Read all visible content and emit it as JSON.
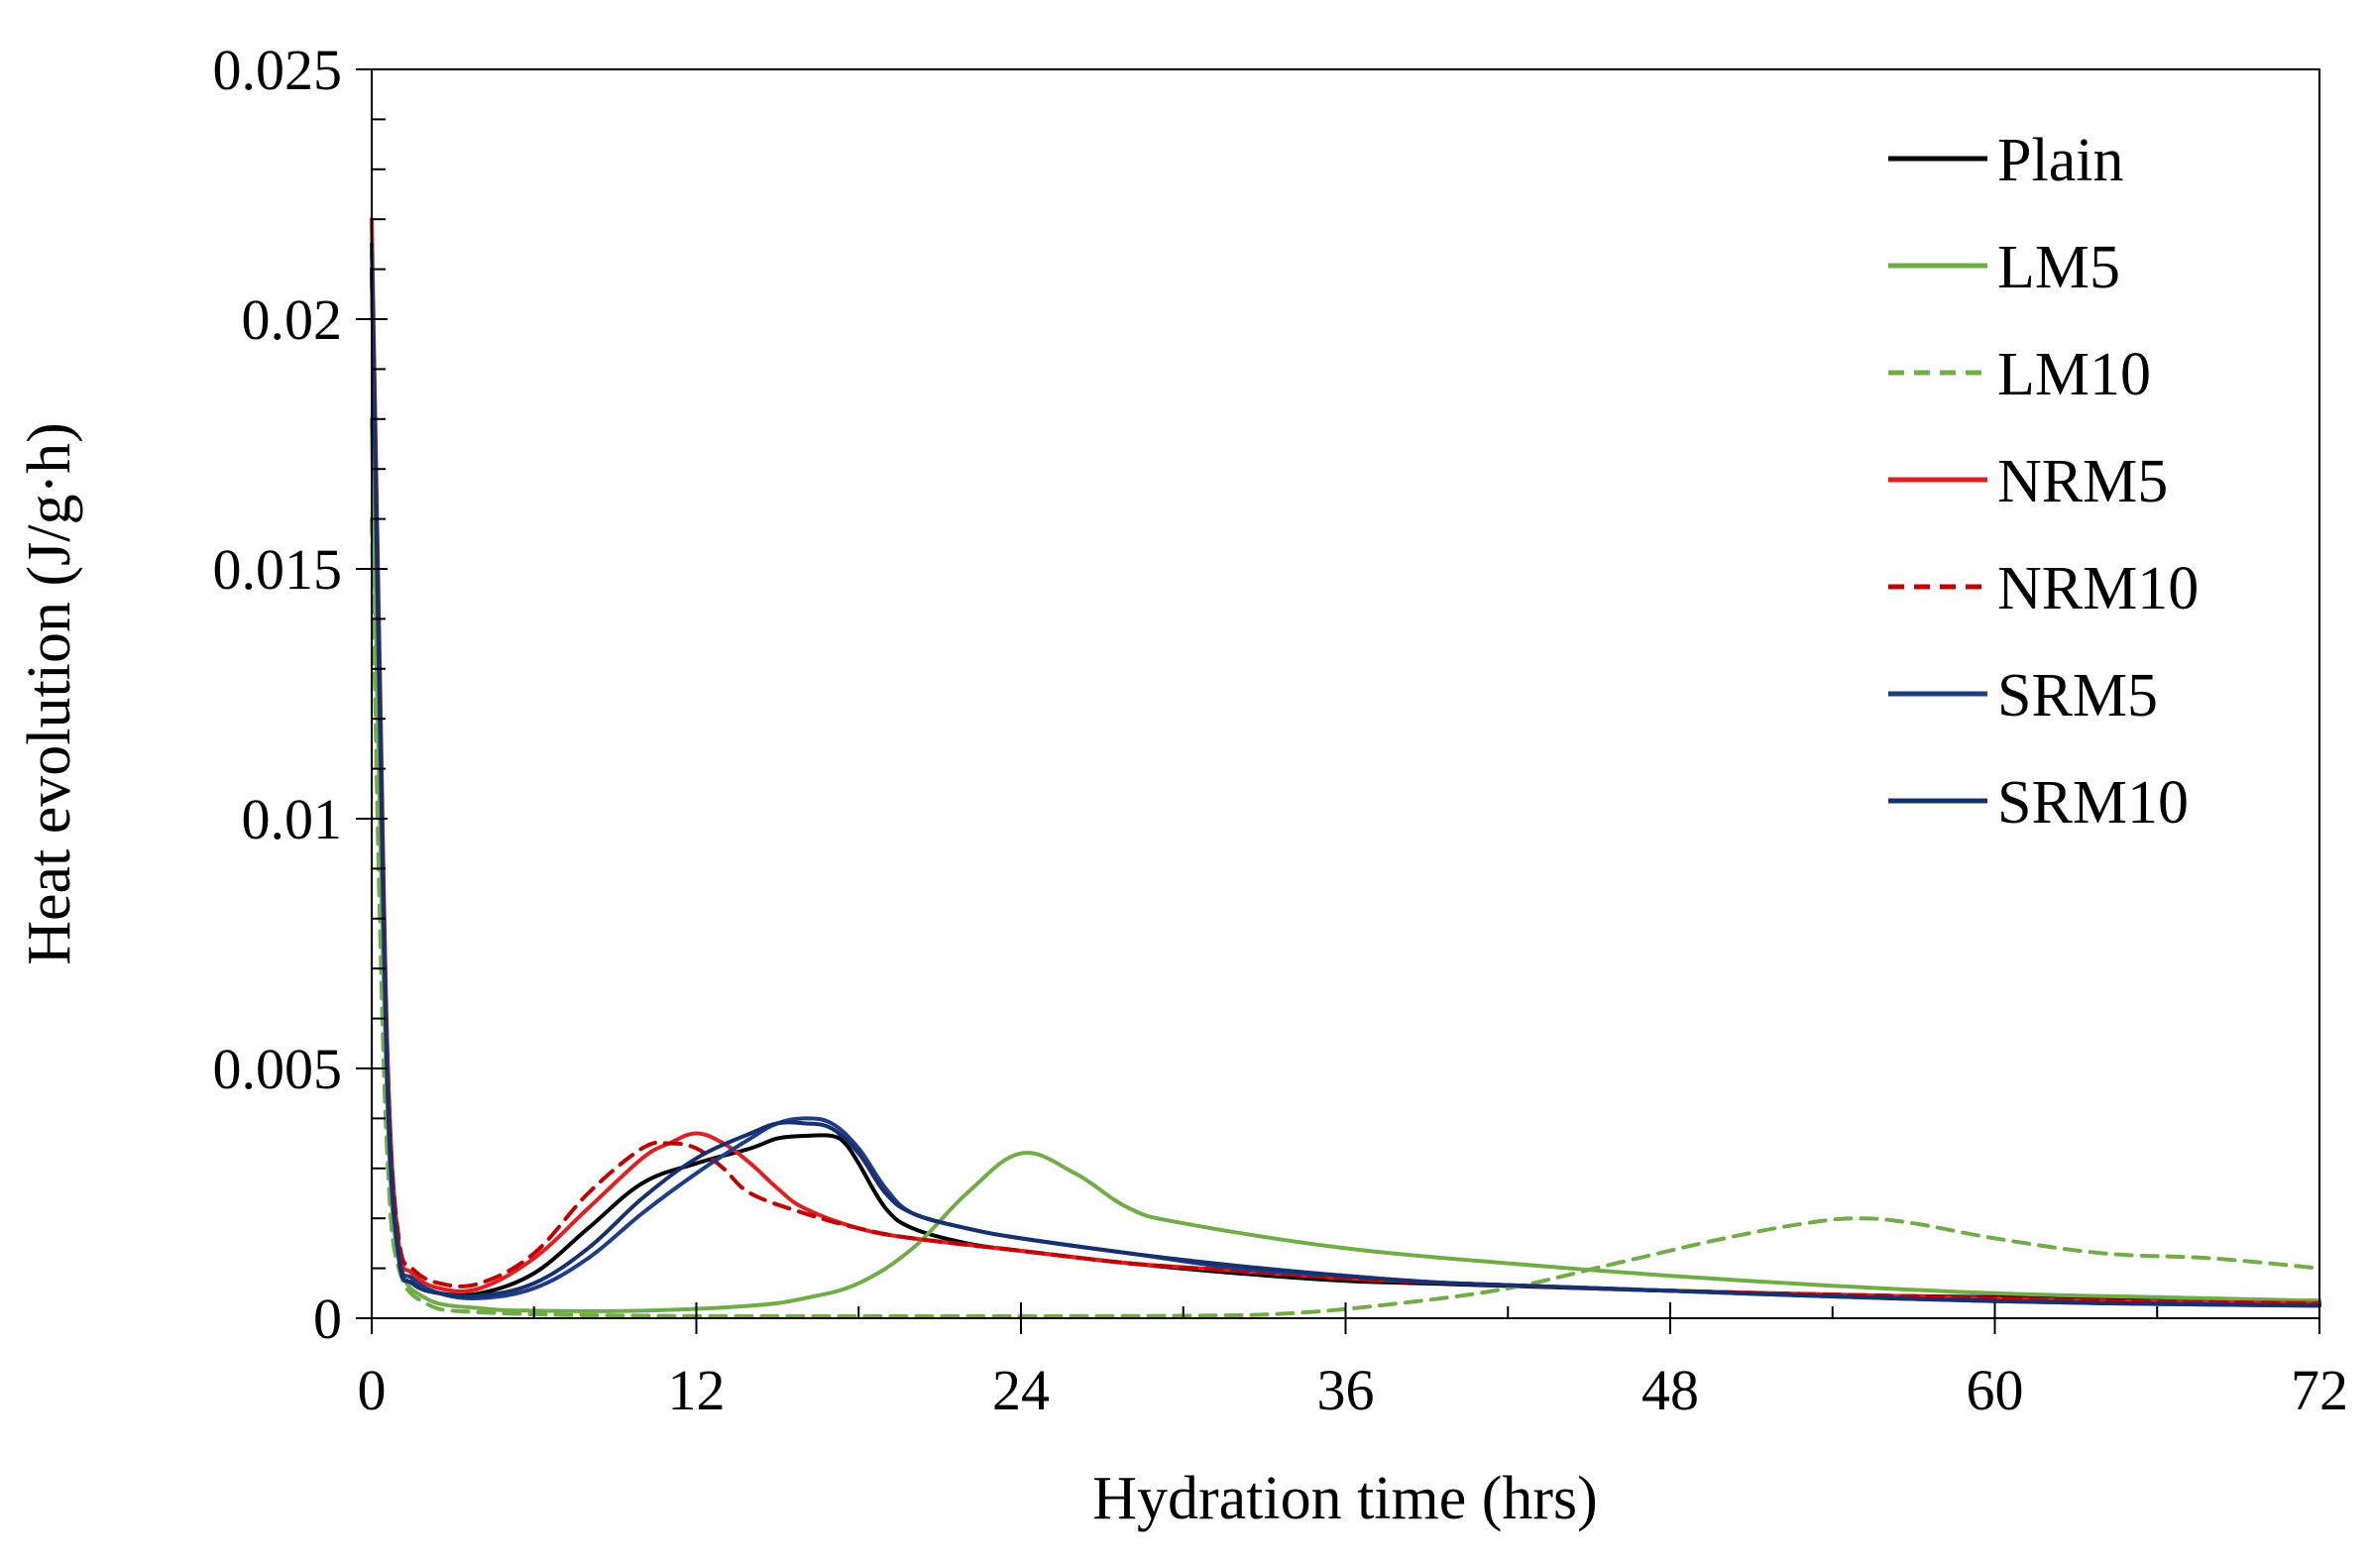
{
  "chart_data": {
    "type": "line",
    "title": "",
    "xlabel": "Hydration time (hrs)",
    "ylabel": "Heat evolution (J/g·h)",
    "xlim": [
      0,
      72
    ],
    "ylim": [
      0,
      0.025
    ],
    "xticks": [
      0,
      12,
      24,
      36,
      48,
      60,
      72
    ],
    "xtick_labels": [
      "0",
      "12",
      "24",
      "36",
      "48",
      "60",
      "72"
    ],
    "yticks": [
      0,
      0.005,
      0.01,
      0.015,
      0.02,
      0.025
    ],
    "ytick_labels": [
      "0",
      "0.005",
      "0.01",
      "0.015",
      "0.02",
      "0.025"
    ],
    "grid": false,
    "legend_position": "top-right",
    "series": [
      {
        "name": "Plain",
        "color": "#000000",
        "dash": "solid",
        "points": [
          [
            0,
            0.021
          ],
          [
            0.3,
            0.012
          ],
          [
            0.6,
            0.004
          ],
          [
            1,
            0.0012
          ],
          [
            1.5,
            0.0007
          ],
          [
            2.5,
            0.0005
          ],
          [
            4,
            0.0005
          ],
          [
            6,
            0.0009
          ],
          [
            8,
            0.0018
          ],
          [
            10,
            0.0027
          ],
          [
            12,
            0.0031
          ],
          [
            14,
            0.0034
          ],
          [
            15,
            0.0036
          ],
          [
            16,
            0.00365
          ],
          [
            17,
            0.00365
          ],
          [
            17.5,
            0.0035
          ],
          [
            18,
            0.0031
          ],
          [
            19,
            0.0022
          ],
          [
            20,
            0.0018
          ],
          [
            22,
            0.0015
          ],
          [
            24,
            0.00135
          ],
          [
            28,
            0.0011
          ],
          [
            32,
            0.0009
          ],
          [
            36,
            0.00075
          ],
          [
            40,
            0.00068
          ],
          [
            48,
            0.00055
          ],
          [
            56,
            0.00045
          ],
          [
            64,
            0.0004
          ],
          [
            72,
            0.00035
          ]
        ]
      },
      {
        "name": "LM5",
        "color": "#70ad47",
        "dash": "solid",
        "points": [
          [
            0,
            0.018
          ],
          [
            0.3,
            0.01
          ],
          [
            0.6,
            0.004
          ],
          [
            1,
            0.0012
          ],
          [
            2,
            0.0004
          ],
          [
            4,
            0.0002
          ],
          [
            6,
            0.00015
          ],
          [
            10,
            0.00015
          ],
          [
            14,
            0.00025
          ],
          [
            16,
            0.0004
          ],
          [
            18,
            0.0007
          ],
          [
            20,
            0.0014
          ],
          [
            22,
            0.0025
          ],
          [
            24,
            0.0033
          ],
          [
            26,
            0.0029
          ],
          [
            28,
            0.0022
          ],
          [
            30,
            0.0019
          ],
          [
            36,
            0.0014
          ],
          [
            42,
            0.0011
          ],
          [
            48,
            0.00085
          ],
          [
            54,
            0.00065
          ],
          [
            60,
            0.0005
          ],
          [
            66,
            0.00042
          ],
          [
            72,
            0.00035
          ]
        ]
      },
      {
        "name": "LM10",
        "color": "#70ad47",
        "dash": "dashed",
        "points": [
          [
            0,
            0.016
          ],
          [
            0.3,
            0.008
          ],
          [
            0.6,
            0.003
          ],
          [
            1,
            0.001
          ],
          [
            2,
            0.0003
          ],
          [
            4,
            0.00012
          ],
          [
            10,
            5e-05
          ],
          [
            20,
            4e-05
          ],
          [
            30,
            5e-05
          ],
          [
            34,
            0.0001
          ],
          [
            38,
            0.0003
          ],
          [
            42,
            0.0006
          ],
          [
            46,
            0.0011
          ],
          [
            50,
            0.0016
          ],
          [
            53,
            0.0019
          ],
          [
            55,
            0.002
          ],
          [
            57,
            0.0019
          ],
          [
            60,
            0.0016
          ],
          [
            64,
            0.0013
          ],
          [
            68,
            0.0012
          ],
          [
            72,
            0.001
          ]
        ]
      },
      {
        "name": "NRM5",
        "color": "#e02020",
        "dash": "solid",
        "points": [
          [
            0,
            0.022
          ],
          [
            0.3,
            0.013
          ],
          [
            0.6,
            0.005
          ],
          [
            1,
            0.0015
          ],
          [
            1.5,
            0.0009
          ],
          [
            2.5,
            0.0006
          ],
          [
            4,
            0.0006
          ],
          [
            6,
            0.0012
          ],
          [
            8,
            0.0022
          ],
          [
            10,
            0.0032
          ],
          [
            11,
            0.0035
          ],
          [
            12,
            0.0037
          ],
          [
            13,
            0.0035
          ],
          [
            14,
            0.0031
          ],
          [
            15,
            0.0026
          ],
          [
            16,
            0.0022
          ],
          [
            18,
            0.0018
          ],
          [
            20,
            0.0016
          ],
          [
            24,
            0.00135
          ],
          [
            28,
            0.0011
          ],
          [
            32,
            0.00095
          ],
          [
            36,
            0.0008
          ],
          [
            40,
            0.0007
          ],
          [
            48,
            0.00055
          ],
          [
            56,
            0.00045
          ],
          [
            64,
            0.00035
          ],
          [
            72,
            0.0003
          ]
        ]
      },
      {
        "name": "NRM10",
        "color": "#c00000",
        "dash": "dashed",
        "points": [
          [
            0,
            0.0215
          ],
          [
            0.3,
            0.0125
          ],
          [
            0.6,
            0.0048
          ],
          [
            1,
            0.0016
          ],
          [
            1.5,
            0.001
          ],
          [
            2.5,
            0.0007
          ],
          [
            4,
            0.0007
          ],
          [
            6,
            0.0013
          ],
          [
            8,
            0.0025
          ],
          [
            10,
            0.0034
          ],
          [
            11,
            0.0035
          ],
          [
            12,
            0.0034
          ],
          [
            13,
            0.003
          ],
          [
            14,
            0.0025
          ],
          [
            16,
            0.0021
          ],
          [
            18,
            0.0018
          ],
          [
            20,
            0.0016
          ],
          [
            24,
            0.00135
          ],
          [
            28,
            0.0011
          ],
          [
            32,
            0.00095
          ],
          [
            36,
            0.0008
          ],
          [
            40,
            0.0007
          ],
          [
            48,
            0.00055
          ],
          [
            56,
            0.00045
          ],
          [
            64,
            0.00035
          ],
          [
            72,
            0.0003
          ]
        ]
      },
      {
        "name": "SRM5",
        "color": "#1f3c88",
        "dash": "solid",
        "points": [
          [
            0,
            0.0215
          ],
          [
            0.3,
            0.0125
          ],
          [
            0.6,
            0.0045
          ],
          [
            1,
            0.0013
          ],
          [
            1.5,
            0.0008
          ],
          [
            2.5,
            0.0005
          ],
          [
            4,
            0.0004
          ],
          [
            6,
            0.0006
          ],
          [
            8,
            0.0012
          ],
          [
            10,
            0.0021
          ],
          [
            12,
            0.0029
          ],
          [
            14,
            0.0036
          ],
          [
            15,
            0.0039
          ],
          [
            16,
            0.004
          ],
          [
            17,
            0.0039
          ],
          [
            18,
            0.0034
          ],
          [
            19,
            0.0026
          ],
          [
            20,
            0.0021
          ],
          [
            22,
            0.0018
          ],
          [
            24,
            0.0016
          ],
          [
            28,
            0.0013
          ],
          [
            32,
            0.001
          ],
          [
            36,
            0.00085
          ],
          [
            40,
            0.0007
          ],
          [
            48,
            0.00055
          ],
          [
            56,
            0.0004
          ],
          [
            64,
            0.0003
          ],
          [
            72,
            0.00025
          ]
        ]
      },
      {
        "name": "SRM10",
        "color": "#16316e",
        "dash": "solid",
        "points": [
          [
            0,
            0.021
          ],
          [
            0.3,
            0.012
          ],
          [
            0.6,
            0.0043
          ],
          [
            1,
            0.0012
          ],
          [
            1.5,
            0.0007
          ],
          [
            2.5,
            0.0005
          ],
          [
            4,
            0.00045
          ],
          [
            6,
            0.0007
          ],
          [
            8,
            0.0014
          ],
          [
            10,
            0.0024
          ],
          [
            12,
            0.0032
          ],
          [
            14,
            0.0037
          ],
          [
            15,
            0.0039
          ],
          [
            16,
            0.0039
          ],
          [
            17,
            0.0038
          ],
          [
            18,
            0.0033
          ],
          [
            19,
            0.0025
          ],
          [
            20,
            0.0021
          ],
          [
            22,
            0.0018
          ],
          [
            24,
            0.0016
          ],
          [
            28,
            0.0013
          ],
          [
            32,
            0.00105
          ],
          [
            36,
            0.00085
          ],
          [
            40,
            0.0007
          ],
          [
            48,
            0.00055
          ],
          [
            56,
            0.0004
          ],
          [
            64,
            0.0003
          ],
          [
            72,
            0.00025
          ]
        ]
      }
    ]
  }
}
